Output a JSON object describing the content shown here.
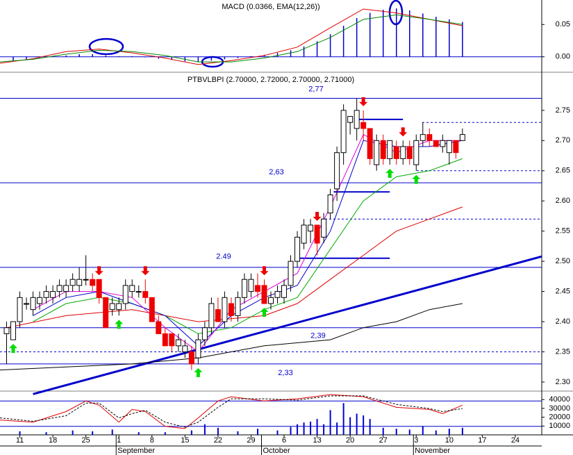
{
  "chart_data": [
    {
      "type": "macd",
      "title": "MACD (0.0366, EMA(12,26))",
      "xlim": [
        0,
        82
      ],
      "ylim": [
        -0.024,
        0.088
      ],
      "yticks": [
        0.05,
        {
          "value": 0,
          "label": "0.00"
        }
      ],
      "baseline_color": "#0000cc",
      "histogram": {
        "color": "#0000cc",
        "x": [
          2,
          4,
          6,
          8,
          10,
          12,
          14,
          16,
          18,
          20,
          22,
          24,
          26,
          28,
          30,
          32,
          34,
          36,
          38,
          40,
          42,
          44,
          46,
          48,
          50,
          52,
          54,
          56,
          58,
          60,
          62,
          64,
          66,
          68,
          70
        ],
        "values": [
          -0.006,
          -0.004,
          -0.002,
          0.0,
          0.002,
          0.004,
          0.004,
          0.002,
          0.001,
          0.001,
          -0.001,
          -0.003,
          -0.005,
          -0.007,
          -0.008,
          -0.006,
          -0.004,
          -0.002,
          0.001,
          0.003,
          0.006,
          0.01,
          0.016,
          0.024,
          0.035,
          0.048,
          0.06,
          0.068,
          0.073,
          0.075,
          0.072,
          0.067,
          0.062,
          0.058,
          0.054
        ]
      },
      "lines": [
        {
          "color": "#dd0000",
          "x": [
            0,
            5,
            10,
            15,
            20,
            25,
            30,
            35,
            40,
            45,
            50,
            55,
            60,
            65,
            70
          ],
          "values": [
            -0.01,
            -0.003,
            0.008,
            0.012,
            0.006,
            -0.002,
            -0.012,
            -0.006,
            0.002,
            0.015,
            0.045,
            0.074,
            0.068,
            0.058,
            0.048
          ]
        },
        {
          "color": "#008800",
          "x": [
            0,
            5,
            10,
            15,
            20,
            25,
            30,
            35,
            40,
            45,
            50,
            55,
            60,
            65,
            70
          ],
          "values": [
            -0.008,
            -0.004,
            0.004,
            0.01,
            0.008,
            0.002,
            -0.008,
            -0.008,
            -0.002,
            0.008,
            0.03,
            0.058,
            0.065,
            0.058,
            0.05
          ]
        }
      ]
    },
    {
      "type": "candlestick",
      "title": "PTBVLBPI (2.70000, 2.72000, 2.70000, 2.71000)",
      "xlim": [
        0,
        82
      ],
      "ylim": [
        2.285,
        2.812
      ],
      "yticks": [
        2.75,
        {
          "value": 2.7,
          "label": "2.70"
        },
        2.65,
        {
          "value": 2.6,
          "label": "2.60"
        },
        2.55,
        {
          "value": 2.5,
          "label": "2.50"
        },
        2.45,
        {
          "value": 2.4,
          "label": "2.40"
        },
        2.35,
        {
          "value": 2.3,
          "label": "2.30"
        }
      ],
      "up_color": "#ffffff",
      "down_color": "#ee0000",
      "x": [
        1,
        2,
        3,
        4,
        5,
        6,
        7,
        8,
        9,
        10,
        11,
        12,
        13,
        14,
        15,
        16,
        17,
        18,
        19,
        20,
        21,
        22,
        23,
        24,
        25,
        26,
        27,
        28,
        29,
        30,
        31,
        32,
        33,
        34,
        35,
        36,
        37,
        38,
        39,
        40,
        41,
        42,
        43,
        44,
        45,
        46,
        47,
        48,
        49,
        50,
        51,
        52,
        53,
        54,
        55,
        56,
        57,
        58,
        59,
        60,
        61,
        62,
        63,
        64,
        65,
        66,
        67,
        68,
        69,
        70
      ],
      "open": [
        2.38,
        2.37,
        2.4,
        2.43,
        2.42,
        2.43,
        2.44,
        2.44,
        2.45,
        2.45,
        2.46,
        2.46,
        2.47,
        2.47,
        2.47,
        2.44,
        2.42,
        2.42,
        2.43,
        2.45,
        2.45,
        2.45,
        2.44,
        2.4,
        2.38,
        2.38,
        2.36,
        2.35,
        2.35,
        2.34,
        2.37,
        2.39,
        2.42,
        2.4,
        2.43,
        2.41,
        2.44,
        2.45,
        2.46,
        2.46,
        2.43,
        2.44,
        2.44,
        2.46,
        2.5,
        2.53,
        2.55,
        2.56,
        2.54,
        2.58,
        2.62,
        2.68,
        2.73,
        2.72,
        2.73,
        2.72,
        2.66,
        2.7,
        2.67,
        2.69,
        2.67,
        2.69,
        2.66,
        2.7,
        2.71,
        2.7,
        2.69,
        2.68,
        2.7,
        2.7
      ],
      "high": [
        2.4,
        2.4,
        2.45,
        2.44,
        2.45,
        2.45,
        2.46,
        2.46,
        2.47,
        2.47,
        2.48,
        2.49,
        2.51,
        2.48,
        2.47,
        2.44,
        2.44,
        2.44,
        2.47,
        2.47,
        2.46,
        2.47,
        2.44,
        2.41,
        2.39,
        2.38,
        2.38,
        2.37,
        2.36,
        2.38,
        2.4,
        2.44,
        2.44,
        2.45,
        2.44,
        2.45,
        2.48,
        2.48,
        2.48,
        2.47,
        2.45,
        2.46,
        2.47,
        2.51,
        2.55,
        2.57,
        2.57,
        2.56,
        2.58,
        2.62,
        2.69,
        2.76,
        2.74,
        2.77,
        2.75,
        2.72,
        2.71,
        2.71,
        2.7,
        2.7,
        2.7,
        2.7,
        2.71,
        2.73,
        2.72,
        2.7,
        2.71,
        2.7,
        2.7,
        2.72
      ],
      "low": [
        2.33,
        2.37,
        2.39,
        2.42,
        2.41,
        2.42,
        2.43,
        2.43,
        2.44,
        2.44,
        2.45,
        2.45,
        2.46,
        2.45,
        2.43,
        2.39,
        2.41,
        2.41,
        2.42,
        2.44,
        2.44,
        2.43,
        2.4,
        2.38,
        2.36,
        2.35,
        2.35,
        2.34,
        2.32,
        2.33,
        2.36,
        2.38,
        2.4,
        2.39,
        2.4,
        2.4,
        2.43,
        2.44,
        2.44,
        2.43,
        2.42,
        2.43,
        2.43,
        2.45,
        2.49,
        2.52,
        2.53,
        2.51,
        2.53,
        2.57,
        2.6,
        2.66,
        2.71,
        2.7,
        2.7,
        2.66,
        2.65,
        2.66,
        2.66,
        2.66,
        2.66,
        2.66,
        2.65,
        2.69,
        2.69,
        2.69,
        2.68,
        2.66,
        2.67,
        2.7
      ],
      "close": [
        2.39,
        2.4,
        2.44,
        2.43,
        2.44,
        2.44,
        2.45,
        2.45,
        2.46,
        2.46,
        2.47,
        2.47,
        2.47,
        2.46,
        2.44,
        2.39,
        2.43,
        2.43,
        2.46,
        2.46,
        2.45,
        2.44,
        2.4,
        2.38,
        2.36,
        2.36,
        2.37,
        2.36,
        2.33,
        2.37,
        2.39,
        2.43,
        2.4,
        2.44,
        2.41,
        2.44,
        2.47,
        2.47,
        2.45,
        2.43,
        2.44,
        2.45,
        2.46,
        2.5,
        2.54,
        2.56,
        2.56,
        2.53,
        2.57,
        2.61,
        2.68,
        2.75,
        2.74,
        2.75,
        2.72,
        2.67,
        2.7,
        2.67,
        2.7,
        2.67,
        2.69,
        2.67,
        2.7,
        2.71,
        2.7,
        2.69,
        2.7,
        2.7,
        2.68,
        2.71
      ],
      "lines": [
        {
          "color": "#000000",
          "x": [
            0,
            10,
            20,
            30,
            40,
            50,
            55,
            60,
            65,
            70
          ],
          "values": [
            2.32,
            2.325,
            2.33,
            2.34,
            2.36,
            2.37,
            2.39,
            2.4,
            2.42,
            2.43
          ]
        },
        {
          "color": "#dd0000",
          "x": [
            1,
            10,
            20,
            30,
            40,
            45,
            50,
            55,
            60,
            65,
            70
          ],
          "values": [
            2.39,
            2.41,
            2.42,
            2.4,
            2.41,
            2.43,
            2.47,
            2.51,
            2.55,
            2.57,
            2.59
          ]
        },
        {
          "color": "#00aa00",
          "x": [
            5,
            10,
            15,
            20,
            25,
            30,
            35,
            40,
            45,
            50,
            55,
            60,
            65,
            70
          ],
          "values": [
            2.4,
            2.43,
            2.44,
            2.43,
            2.41,
            2.38,
            2.39,
            2.42,
            2.44,
            2.52,
            2.6,
            2.64,
            2.65,
            2.67
          ]
        },
        {
          "color": "#0000cc",
          "x": [
            5,
            10,
            15,
            20,
            25,
            30,
            35,
            40,
            45,
            50,
            55,
            60,
            65,
            70
          ],
          "values": [
            2.41,
            2.44,
            2.45,
            2.43,
            2.41,
            2.36,
            2.41,
            2.44,
            2.46,
            2.55,
            2.7,
            2.69,
            2.69,
            2.7
          ]
        },
        {
          "color": "#dd00dd",
          "x": [
            5,
            10,
            15,
            20,
            25,
            30,
            35,
            40,
            45,
            50,
            55,
            60,
            65,
            70
          ],
          "values": [
            2.42,
            2.45,
            2.45,
            2.44,
            2.39,
            2.35,
            2.42,
            2.45,
            2.48,
            2.59,
            2.71,
            2.68,
            2.7,
            2.7
          ]
        }
      ],
      "levels": {
        "color": "#0000cc",
        "values": [
          2.77,
          2.63,
          2.49,
          2.39,
          2.33
        ],
        "value_labels": [
          "2,77",
          "2,63",
          "2.49",
          "2,39",
          "2,33"
        ]
      },
      "dashed_levels": {
        "color": "#0000cc",
        "values": [
          2.73,
          2.65,
          2.57,
          2.35
        ]
      },
      "segments": [
        {
          "x": [
            54,
            61
          ],
          "values": [
            2.735,
            2.735
          ]
        },
        {
          "x": [
            50.5,
            59
          ],
          "values": [
            2.615,
            2.615
          ]
        },
        {
          "x": [
            45,
            59
          ],
          "values": [
            2.505,
            2.505
          ]
        }
      ],
      "trendline": {
        "color": "#0000cc",
        "x": [
          5,
          82
        ],
        "values": [
          2.28,
          2.508
        ]
      },
      "buy_signals": [
        2,
        18,
        30,
        40,
        59,
        63
      ],
      "buy_color": "#00dd00",
      "sell_signals": [
        15,
        22,
        40,
        48,
        55,
        61
      ],
      "sell_color": "#ee0000"
    },
    {
      "type": "oscillator-volume",
      "xlim": [
        0,
        82
      ],
      "ylim": [
        0,
        48000
      ],
      "yticks": [
        40000,
        30000,
        20000,
        10000
      ],
      "y2lim": [
        0,
        100
      ],
      "y2levels": [
        80,
        20
      ],
      "level_color": "#0000cc",
      "volume": {
        "color": "#0000cc",
        "x": [
          3,
          7,
          11,
          14,
          17,
          21,
          25,
          29,
          31,
          33,
          36,
          39,
          42,
          44,
          45,
          46,
          47,
          48,
          49,
          50,
          51,
          52,
          53,
          54,
          55,
          56,
          58,
          60,
          62,
          64,
          66,
          68,
          70
        ],
        "values": [
          4000,
          3000,
          5000,
          4000,
          6000,
          3000,
          3000,
          5000,
          12000,
          8000,
          4000,
          7000,
          5000,
          9000,
          12000,
          14000,
          15000,
          18000,
          12000,
          28000,
          14000,
          36000,
          20000,
          24000,
          22000,
          18000,
          8000,
          7000,
          6000,
          10000,
          5000,
          7000,
          8000
        ]
      },
      "series": [
        {
          "color": "#dd0000",
          "dash": false,
          "axis": "y2",
          "x": [
            0,
            5,
            10,
            13,
            15,
            18,
            20,
            22,
            25,
            28,
            30,
            33,
            35,
            40,
            45,
            50,
            55,
            60,
            65,
            67,
            70
          ],
          "values": [
            35,
            30,
            55,
            80,
            70,
            30,
            60,
            55,
            20,
            15,
            40,
            80,
            90,
            80,
            85,
            95,
            90,
            65,
            60,
            50,
            70
          ]
        },
        {
          "color": "#000000",
          "dash": true,
          "axis": "y2",
          "x": [
            0,
            5,
            10,
            13,
            15,
            18,
            20,
            22,
            25,
            28,
            30,
            33,
            35,
            40,
            45,
            50,
            55,
            60,
            65,
            67,
            70
          ],
          "values": [
            40,
            32,
            45,
            75,
            75,
            40,
            50,
            58,
            30,
            18,
            30,
            65,
            85,
            85,
            82,
            92,
            92,
            72,
            62,
            55,
            62
          ]
        }
      ],
      "xticks": [
        {
          "value": 3,
          "label": "11"
        },
        {
          "value": 8,
          "label": "18"
        },
        {
          "value": 13,
          "label": "25"
        },
        {
          "value": 18,
          "label": "1"
        },
        {
          "value": 23,
          "label": "8"
        },
        {
          "value": 28,
          "label": "15"
        },
        {
          "value": 33,
          "label": "22"
        },
        {
          "value": 38,
          "label": "29"
        },
        {
          "value": 43,
          "label": "6"
        },
        {
          "value": 48,
          "label": "13"
        },
        {
          "value": 53,
          "label": "20"
        },
        {
          "value": 58,
          "label": "27"
        },
        {
          "value": 63,
          "label": "3"
        },
        {
          "value": 68,
          "label": "10"
        },
        {
          "value": 73,
          "label": "17"
        },
        {
          "value": 78,
          "label": "24"
        }
      ],
      "month_ticks": [
        {
          "value": 18,
          "label": "September"
        },
        {
          "value": 40,
          "label": "October"
        },
        {
          "value": 63,
          "label": "November"
        }
      ]
    }
  ]
}
